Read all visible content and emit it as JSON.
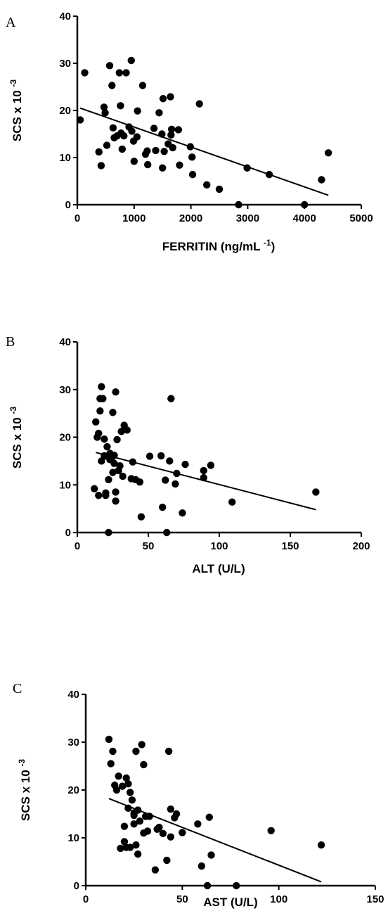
{
  "chart_data": [
    {
      "type": "scatter",
      "panel": "A",
      "xlabel": "FERRITIN (ng/mL",
      "xlabel_sup": "-1",
      "xlabel_close": ")",
      "ylabel": "SCS x 10",
      "ylabel_sup": "-3",
      "xlim": [
        0,
        5000
      ],
      "ylim": [
        0,
        40
      ],
      "xticks": [
        0,
        1000,
        2000,
        3000,
        4000,
        5000
      ],
      "yticks": [
        0,
        10,
        20,
        30,
        40
      ],
      "fit": {
        "x": [
          50,
          4420
        ],
        "y": [
          20.5,
          2.0
        ]
      },
      "points": [
        [
          50,
          18
        ],
        [
          130,
          28
        ],
        [
          380,
          11.2
        ],
        [
          420,
          8.3
        ],
        [
          470,
          20.7
        ],
        [
          490,
          19.5
        ],
        [
          520,
          12.6
        ],
        [
          570,
          29.5
        ],
        [
          610,
          25.3
        ],
        [
          630,
          16.3
        ],
        [
          650,
          14.2
        ],
        [
          700,
          14.6
        ],
        [
          740,
          28
        ],
        [
          760,
          21
        ],
        [
          770,
          15.2
        ],
        [
          790,
          11.8
        ],
        [
          820,
          14.6
        ],
        [
          860,
          28
        ],
        [
          910,
          16.5
        ],
        [
          950,
          30.6
        ],
        [
          960,
          15.6
        ],
        [
          990,
          13.5
        ],
        [
          1000,
          9.2
        ],
        [
          1050,
          14.4
        ],
        [
          1060,
          19.9
        ],
        [
          1150,
          25.3
        ],
        [
          1200,
          10.7
        ],
        [
          1230,
          11.4
        ],
        [
          1240,
          8.5
        ],
        [
          1350,
          16.2
        ],
        [
          1380,
          11.5
        ],
        [
          1440,
          19.5
        ],
        [
          1490,
          15
        ],
        [
          1500,
          7.8
        ],
        [
          1510,
          22.5
        ],
        [
          1530,
          11.3
        ],
        [
          1600,
          12.9
        ],
        [
          1640,
          22.9
        ],
        [
          1650,
          14.8
        ],
        [
          1660,
          16
        ],
        [
          1680,
          12.1
        ],
        [
          1780,
          15.9
        ],
        [
          1800,
          8.4
        ],
        [
          1990,
          12.3
        ],
        [
          2020,
          10.1
        ],
        [
          2030,
          6.4
        ],
        [
          2150,
          21.4
        ],
        [
          2280,
          4.2
        ],
        [
          2500,
          3.3
        ],
        [
          2840,
          0
        ],
        [
          2990,
          7.8
        ],
        [
          3380,
          6.4
        ],
        [
          4000,
          0
        ],
        [
          4300,
          5.3
        ],
        [
          4420,
          11
        ]
      ]
    },
    {
      "type": "scatter",
      "panel": "B",
      "xlabel": "ALT (U/L)",
      "ylabel": "SCS x 10",
      "ylabel_sup": "-3",
      "xlim": [
        0,
        200
      ],
      "ylim": [
        0,
        40
      ],
      "xticks": [
        0,
        50,
        100,
        150,
        200
      ],
      "yticks": [
        0,
        10,
        20,
        30,
        40
      ],
      "fit": {
        "x": [
          13,
          168
        ],
        "y": [
          16.8,
          4.8
        ]
      },
      "points": [
        [
          12,
          9.2
        ],
        [
          13,
          23.2
        ],
        [
          14,
          20
        ],
        [
          15,
          7.8
        ],
        [
          15,
          20.8
        ],
        [
          16,
          25.5
        ],
        [
          16,
          28.1
        ],
        [
          17,
          30.6
        ],
        [
          17,
          15
        ],
        [
          18,
          28.1
        ],
        [
          19,
          16.1
        ],
        [
          19,
          19.6
        ],
        [
          20,
          8.3
        ],
        [
          20,
          7.8
        ],
        [
          21,
          16
        ],
        [
          21,
          18
        ],
        [
          22,
          0
        ],
        [
          22,
          11.1
        ],
        [
          23,
          16.6
        ],
        [
          23,
          15.3
        ],
        [
          24,
          15.3
        ],
        [
          25,
          12.6
        ],
        [
          25,
          25.2
        ],
        [
          26,
          16.2
        ],
        [
          26,
          14.5
        ],
        [
          27,
          29.5
        ],
        [
          27,
          6.6
        ],
        [
          27,
          8.5
        ],
        [
          28,
          19.5
        ],
        [
          29,
          13
        ],
        [
          30,
          14
        ],
        [
          31,
          21.2
        ],
        [
          32,
          11.8
        ],
        [
          33,
          22.5
        ],
        [
          35,
          21.5
        ],
        [
          38,
          11.3
        ],
        [
          39,
          14.8
        ],
        [
          41,
          11.1
        ],
        [
          44,
          10.6
        ],
        [
          45,
          3.3
        ],
        [
          51,
          16
        ],
        [
          59,
          16.1
        ],
        [
          60,
          5.3
        ],
        [
          62,
          11
        ],
        [
          63,
          0
        ],
        [
          65,
          15
        ],
        [
          66,
          28.1
        ],
        [
          69,
          10.2
        ],
        [
          70,
          12.4
        ],
        [
          74,
          4.1
        ],
        [
          76,
          14.3
        ],
        [
          89,
          13
        ],
        [
          89,
          11.5
        ],
        [
          94,
          14.1
        ],
        [
          109,
          6.4
        ],
        [
          168,
          8.5
        ]
      ]
    },
    {
      "type": "scatter",
      "panel": "C",
      "xlabel": "AST (U/L)",
      "ylabel": "SCS x 10",
      "ylabel_sup": "-3",
      "xlim": [
        0,
        150
      ],
      "ylim": [
        0,
        40
      ],
      "xticks": [
        0,
        50,
        100,
        150
      ],
      "yticks": [
        0,
        10,
        20,
        30,
        40
      ],
      "fit": {
        "x": [
          12,
          122
        ],
        "y": [
          18.2,
          0.8
        ]
      },
      "points": [
        [
          12,
          30.6
        ],
        [
          13,
          25.5
        ],
        [
          14,
          28.1
        ],
        [
          15,
          21
        ],
        [
          16,
          20
        ],
        [
          17,
          22.9
        ],
        [
          18,
          7.8
        ],
        [
          19,
          20.8
        ],
        [
          20,
          9.2
        ],
        [
          20,
          12.4
        ],
        [
          21,
          22.5
        ],
        [
          21,
          8
        ],
        [
          22,
          21.3
        ],
        [
          22,
          16.2
        ],
        [
          23,
          19.5
        ],
        [
          23,
          8
        ],
        [
          24,
          17.9
        ],
        [
          25,
          15.2
        ],
        [
          25,
          14.7
        ],
        [
          25,
          12.9
        ],
        [
          26,
          8.5
        ],
        [
          26,
          28.1
        ],
        [
          27,
          6.6
        ],
        [
          27,
          15.8
        ],
        [
          28,
          13.5
        ],
        [
          29,
          29.5
        ],
        [
          30,
          11
        ],
        [
          30,
          25.3
        ],
        [
          31,
          14.5
        ],
        [
          32,
          11.4
        ],
        [
          33,
          14.5
        ],
        [
          36,
          3.3
        ],
        [
          37,
          11.8
        ],
        [
          38,
          12.2
        ],
        [
          40,
          10.9
        ],
        [
          42,
          5.3
        ],
        [
          43,
          28.1
        ],
        [
          44,
          16
        ],
        [
          44,
          10.2
        ],
        [
          46,
          14.2
        ],
        [
          47,
          15
        ],
        [
          50,
          11.1
        ],
        [
          58,
          12.9
        ],
        [
          60,
          4.1
        ],
        [
          64,
          14.3
        ],
        [
          65,
          6.4
        ],
        [
          63,
          0
        ],
        [
          78,
          0
        ],
        [
          96,
          11.5
        ],
        [
          122,
          8.5
        ]
      ]
    }
  ]
}
